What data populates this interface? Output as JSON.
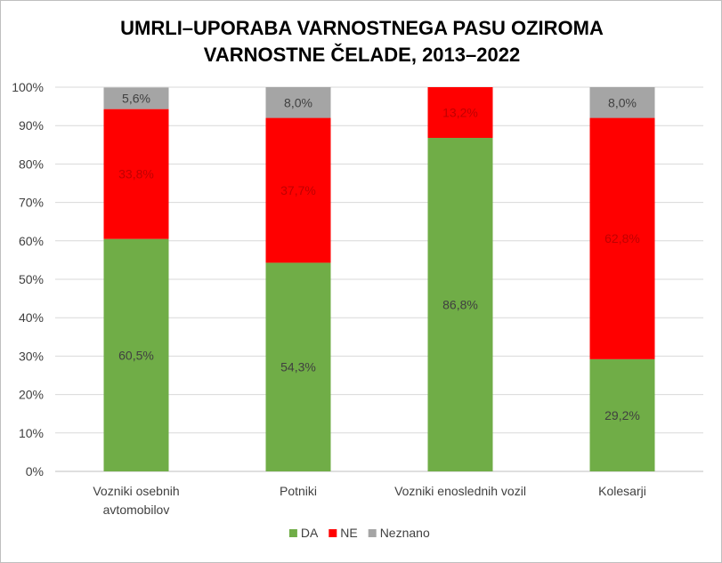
{
  "chart_data": {
    "type": "bar",
    "stacked": true,
    "title_lines": [
      "UMRLI–UPORABA VARNOSTNEGA PASU OZIROMA",
      "VARNOSTNE ČELADE, 2013–2022"
    ],
    "categories": [
      [
        "Vozniki osebnih",
        "avtomobilov"
      ],
      [
        "Potniki"
      ],
      [
        "Vozniki enoslednih vozil"
      ],
      [
        "Kolesarji"
      ]
    ],
    "series": [
      {
        "name": "DA",
        "color": "#70ad47",
        "label_color": "#404040",
        "values": [
          60.5,
          54.3,
          86.8,
          29.2
        ],
        "labels": [
          "60,5%",
          "54,3%",
          "86,8%",
          "29,2%"
        ]
      },
      {
        "name": "NE",
        "color": "#ff0000",
        "label_color": "#c00000",
        "values": [
          33.8,
          37.7,
          13.2,
          62.8
        ],
        "labels": [
          "33,8%",
          "37,7%",
          "13,2%",
          "62,8%"
        ]
      },
      {
        "name": "Neznano",
        "color": "#a5a5a5",
        "label_color": "#404040",
        "values": [
          5.6,
          8.0,
          0,
          8.0
        ],
        "labels": [
          "5,6%",
          "8,0%",
          "",
          "8,0%"
        ]
      }
    ],
    "y_ticks": [
      "0%",
      "10%",
      "20%",
      "30%",
      "40%",
      "50%",
      "60%",
      "70%",
      "80%",
      "90%",
      "100%"
    ],
    "ylim": [
      0,
      100
    ],
    "grid": true,
    "legend_position": "bottom"
  }
}
